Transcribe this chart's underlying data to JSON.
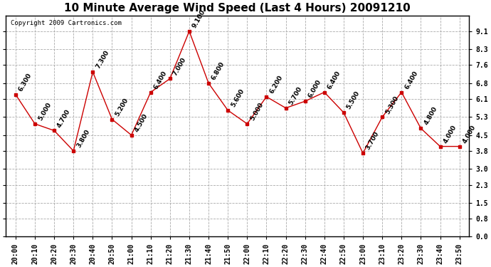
{
  "title": "10 Minute Average Wind Speed (Last 4 Hours) 20091210",
  "copyright": "Copyright 2009 Cartronics.com",
  "x_labels": [
    "20:00",
    "20:10",
    "20:20",
    "20:30",
    "20:40",
    "20:50",
    "21:00",
    "21:10",
    "21:20",
    "21:30",
    "21:40",
    "21:50",
    "22:00",
    "22:10",
    "22:20",
    "22:30",
    "22:40",
    "22:50",
    "23:00",
    "23:10",
    "23:20",
    "23:30",
    "23:40",
    "23:50"
  ],
  "y_values": [
    6.3,
    5.0,
    4.7,
    3.8,
    7.3,
    5.2,
    4.5,
    6.4,
    7.0,
    9.1,
    6.8,
    5.6,
    5.0,
    6.2,
    5.7,
    6.0,
    6.4,
    5.5,
    3.7,
    5.3,
    6.4,
    4.8,
    4.0,
    4.0
  ],
  "point_labels": [
    "6.300",
    "5.000",
    "4.700",
    "3.800",
    "7.300",
    "5.200",
    "4.500",
    "6.400",
    "7.000",
    "9.100",
    "6.800",
    "5.600",
    "5.000",
    "6.200",
    "5.700",
    "6.000",
    "6.400",
    "5.500",
    "3.700",
    "5.300",
    "6.400",
    "4.800",
    "4.000",
    "4.000"
  ],
  "line_color": "#cc0000",
  "marker_color": "#cc0000",
  "bg_color": "#ffffff",
  "grid_color": "#aaaaaa",
  "ylim": [
    0.0,
    9.8
  ],
  "yticks": [
    0.0,
    0.8,
    1.5,
    2.3,
    3.0,
    3.8,
    4.5,
    5.3,
    6.1,
    6.8,
    7.6,
    8.3,
    9.1
  ],
  "title_fontsize": 11,
  "copyright_fontsize": 6.5,
  "label_fontsize": 6.5
}
